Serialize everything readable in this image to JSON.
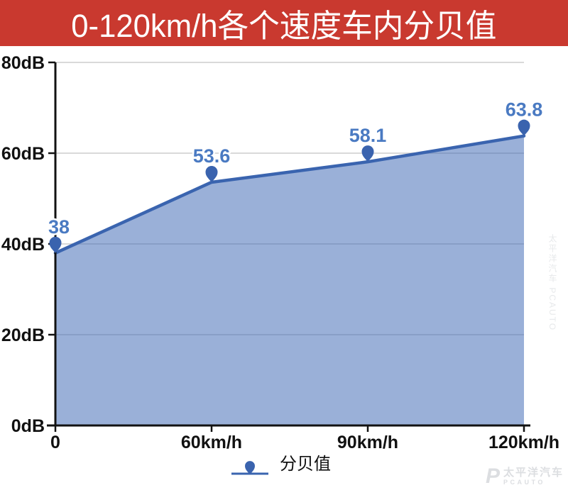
{
  "title": {
    "text": "0-120km/h各个速度车内分贝值"
  },
  "chart_data": {
    "type": "area",
    "title": "0-120km/h各个速度车内分贝值",
    "categories": [
      "0",
      "60km/h",
      "90km/h",
      "120km/h"
    ],
    "series": [
      {
        "name": "分贝值",
        "values": [
          38,
          53.6,
          58.1,
          63.8
        ]
      }
    ],
    "point_labels": [
      "38",
      "53.6",
      "58.1",
      "63.8"
    ],
    "y_ticks": [
      {
        "value": 80,
        "label": "80dB"
      },
      {
        "value": 60,
        "label": "60dB"
      },
      {
        "value": 40,
        "label": "40dB"
      },
      {
        "value": 20,
        "label": "20dB"
      },
      {
        "value": 0,
        "label": "0dB"
      }
    ],
    "ylim": [
      0,
      80
    ],
    "grid": true,
    "legend_position": "bottom",
    "marker": "pin"
  },
  "legend": {
    "label": "分贝值"
  },
  "watermark": {
    "brand": "太平洋汽车",
    "sub": "PCAUTO",
    "side": "太平洋汽车 PCAUTO"
  },
  "theme": {
    "banner_bg": "#c9392f",
    "title_color": "#ffffff",
    "line_color": "#3a64af",
    "area_fill": "#3e68b4",
    "area_fill_opacity": "0.52",
    "pin_color": "#3a63ae",
    "point_label_color": "#4a7ac2",
    "grid_color": "#d9d9d9",
    "axis_color": "#121212",
    "tick_label_color": "#111111"
  }
}
